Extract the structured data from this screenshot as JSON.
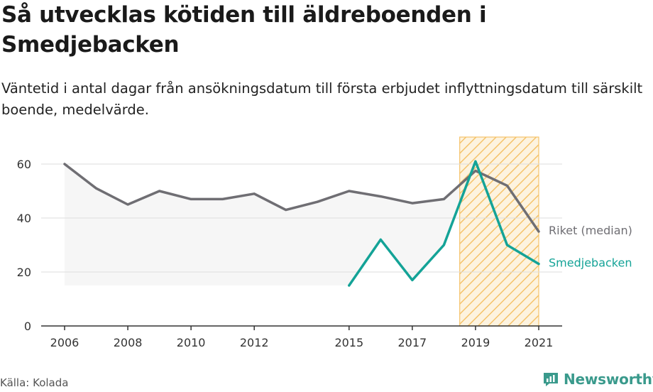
{
  "header": {
    "title": "Så utvecklas kötiden till äldreboenden i Smedjebacken",
    "subtitle": "Väntetid i antal dagar från ansökningsdatum till första erbjudet inflyttningsdatum till särskilt boende, medelvärde."
  },
  "footer": {
    "source": "Källa: Kolada",
    "brand": "Newsworthy"
  },
  "colors": {
    "riket": "#6f6e73",
    "smedjebacken": "#14a397",
    "highlight": "#f5c36b",
    "band": "#f6f6f6",
    "grid": "#dddddd"
  },
  "chart_data": {
    "type": "line",
    "title": "Så utvecklas kötiden till äldreboenden i Smedjebacken",
    "xlabel": "",
    "ylabel": "",
    "xlim": [
      2006,
      2021
    ],
    "ylim": [
      0,
      70
    ],
    "x_ticks": [
      2006,
      2008,
      2010,
      2012,
      2015,
      2017,
      2019,
      2021
    ],
    "y_ticks": [
      0,
      20,
      40,
      60
    ],
    "grid": true,
    "legend": "inline labels at right end of lines",
    "highlight_range": [
      2018.5,
      2021
    ],
    "band": {
      "x": [
        2006,
        2015
      ],
      "low": 15
    },
    "series": [
      {
        "name": "Riket (median)",
        "x": [
          2006,
          2007,
          2008,
          2009,
          2010,
          2011,
          2012,
          2013,
          2014,
          2015,
          2016,
          2017,
          2018,
          2019,
          2020,
          2021
        ],
        "values": [
          60,
          51,
          45,
          50,
          47,
          47,
          49,
          43,
          46,
          50,
          48,
          45.5,
          47,
          57.5,
          52,
          35
        ]
      },
      {
        "name": "Smedjebacken",
        "x": [
          2015,
          2016,
          2017,
          2018,
          2019,
          2020,
          2021
        ],
        "values": [
          15,
          32,
          17,
          30,
          61,
          30,
          23
        ]
      }
    ]
  }
}
